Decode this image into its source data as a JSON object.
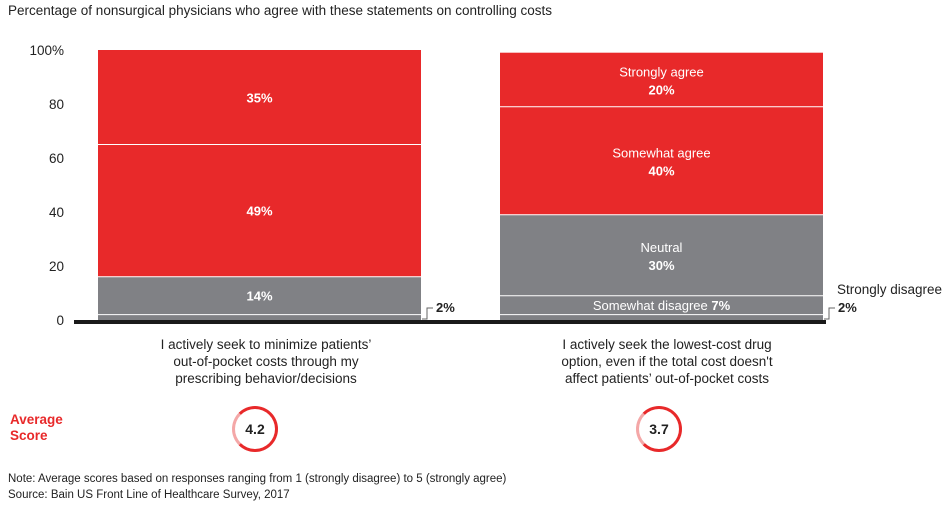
{
  "title": "Percentage of nonsurgical physicians who agree with these statements on controlling costs",
  "chart_data": {
    "type": "bar",
    "stacked": true,
    "ylim": [
      0,
      100
    ],
    "yticks": [
      "100%",
      "80",
      "60",
      "40",
      "20",
      "0"
    ],
    "tick_values": [
      100,
      80,
      60,
      40,
      20,
      0
    ],
    "colors": {
      "agree": "#e8292a",
      "neutral": "#808185",
      "dark": "#1a1a1a"
    },
    "bars": [
      {
        "category": "I actively seek to minimize patients’\nout-of-pocket costs through my\nprescribing behavior/decisions",
        "segments": [
          {
            "value": 2,
            "label": "",
            "value_text": "2%",
            "color": "#808185",
            "external": true
          },
          {
            "value": 14,
            "label": "",
            "value_text": "14%",
            "color": "#808185"
          },
          {
            "value": 49,
            "label": "",
            "value_text": "49%",
            "color": "#e8292a"
          },
          {
            "value": 35,
            "label": "",
            "value_text": "35%",
            "color": "#e8292a"
          }
        ]
      },
      {
        "category": "I actively seek the lowest-cost drug\noption, even if the total cost doesn't\naffect patients’ out-of-pocket costs",
        "segments": [
          {
            "value": 2,
            "label": "Strongly disagree",
            "value_text": "2%",
            "color": "#808185",
            "external": true
          },
          {
            "value": 7,
            "label": "Somewhat disagree",
            "value_text": "7%",
            "color": "#808185",
            "inline": true
          },
          {
            "value": 30,
            "label": "Neutral",
            "value_text": "30%",
            "color": "#808185"
          },
          {
            "value": 40,
            "label": "Somewhat agree",
            "value_text": "40%",
            "color": "#e8292a"
          },
          {
            "value": 20,
            "label": "Strongly agree",
            "value_text": "20%",
            "color": "#e8292a"
          }
        ]
      }
    ]
  },
  "average": {
    "label": "Average\nScore",
    "scores": [
      "4.2",
      "3.7"
    ]
  },
  "notes": {
    "note": "Note: Average scores based on responses ranging from 1 (strongly disagree) to 5 (strongly agree)",
    "source": "Source: Bain US Front Line of Healthcare Survey, 2017"
  }
}
